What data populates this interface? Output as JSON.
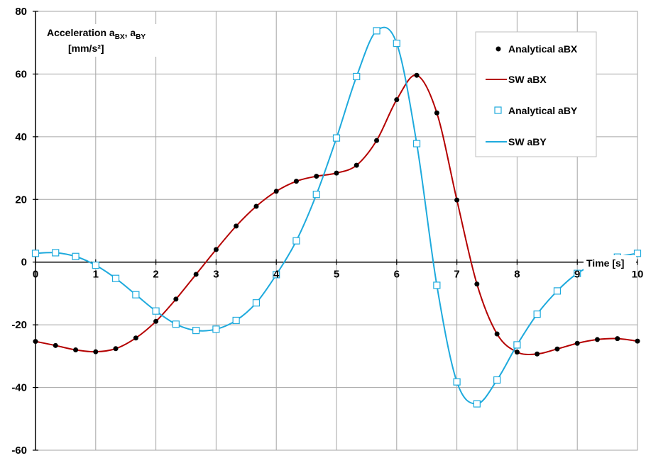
{
  "chart_data": {
    "type": "line",
    "ylabel_main": "Acceleration a",
    "ylabel_sub1": "BX",
    "ylabel_sep": ", a",
    "ylabel_sub2": "BY",
    "ylabel_line2": "[mm/s²]",
    "xlabel": "Time [s]",
    "xlim": [
      0,
      10
    ],
    "ylim": [
      -60,
      80
    ],
    "xticks": [
      0,
      1,
      2,
      3,
      4,
      5,
      6,
      7,
      8,
      9,
      10
    ],
    "yticks": [
      -60,
      -40,
      -20,
      0,
      20,
      40,
      60,
      80
    ],
    "grid": true,
    "legend_position": "top-right",
    "colors": {
      "red": "#b40000",
      "blue": "#1eaadd",
      "grid": "#a6a6a6",
      "axis": "#000000"
    },
    "series": [
      {
        "name": "Analytical aBX",
        "style": "markers-filled-circle",
        "x": [
          0,
          0.333,
          0.667,
          1,
          1.333,
          1.667,
          2,
          2.333,
          2.667,
          3,
          3.333,
          3.667,
          4,
          4.333,
          4.667,
          5,
          5.333,
          5.667,
          6,
          6.333,
          6.667,
          7,
          7.333,
          7.667,
          8,
          8.333,
          8.667,
          9,
          9.333,
          9.667,
          10
        ],
        "y": [
          -25.3,
          -26.6,
          -28.0,
          -28.6,
          -27.6,
          -24.2,
          -18.9,
          -11.8,
          -3.9,
          4.0,
          11.5,
          17.8,
          22.6,
          25.8,
          27.4,
          28.4,
          30.9,
          38.8,
          51.8,
          59.6,
          47.6,
          19.8,
          -7.0,
          -22.9,
          -28.7,
          -29.3,
          -27.7,
          -25.9,
          -24.7,
          -24.4,
          -25.2
        ]
      },
      {
        "name": "SW aBX",
        "style": "line",
        "x": [
          0,
          0.333,
          0.667,
          1,
          1.333,
          1.667,
          2,
          2.333,
          2.667,
          3,
          3.333,
          3.667,
          4,
          4.333,
          4.667,
          5,
          5.333,
          5.667,
          6,
          6.333,
          6.667,
          7,
          7.333,
          7.667,
          8,
          8.333,
          8.667,
          9,
          9.333,
          9.667,
          10
        ],
        "y": [
          -25.3,
          -26.6,
          -28.0,
          -28.6,
          -27.6,
          -24.2,
          -18.9,
          -11.8,
          -3.9,
          4.0,
          11.5,
          17.8,
          22.6,
          25.8,
          27.4,
          28.4,
          30.9,
          38.8,
          51.8,
          59.6,
          47.6,
          19.8,
          -7.0,
          -22.9,
          -28.7,
          -29.3,
          -27.7,
          -25.9,
          -24.7,
          -24.4,
          -25.2
        ]
      },
      {
        "name": "Analytical aBY",
        "style": "markers-open-square",
        "x": [
          0,
          0.333,
          0.667,
          1,
          1.333,
          1.667,
          2,
          2.333,
          2.667,
          3,
          3.333,
          3.667,
          4,
          4.333,
          4.667,
          5,
          5.333,
          5.667,
          6,
          6.333,
          6.667,
          7,
          7.333,
          7.667,
          8,
          8.333,
          8.667,
          9,
          9.333,
          9.667,
          10
        ],
        "y": [
          2.8,
          3.0,
          1.8,
          -1.0,
          -5.2,
          -10.4,
          -15.6,
          -19.8,
          -21.8,
          -21.4,
          -18.6,
          -13.0,
          -4.0,
          6.8,
          21.6,
          39.6,
          59.2,
          73.8,
          69.8,
          37.8,
          -7.4,
          -38.2,
          -45.2,
          -37.6,
          -26.4,
          -16.6,
          -9.2,
          -3.6,
          -0.4,
          1.6,
          2.8
        ]
      },
      {
        "name": "SW aBY",
        "style": "line",
        "x": [
          0,
          0.333,
          0.667,
          1,
          1.333,
          1.667,
          2,
          2.333,
          2.667,
          3,
          3.333,
          3.667,
          4,
          4.333,
          4.667,
          5,
          5.333,
          5.667,
          6,
          6.333,
          6.667,
          7,
          7.333,
          7.667,
          8,
          8.333,
          8.667,
          9,
          9.333,
          9.667,
          10
        ],
        "y": [
          2.8,
          3.0,
          1.8,
          -1.0,
          -5.2,
          -10.4,
          -15.6,
          -19.8,
          -21.8,
          -21.4,
          -18.6,
          -13.0,
          -4.0,
          6.8,
          21.6,
          39.6,
          59.2,
          73.8,
          69.8,
          37.8,
          -7.4,
          -38.2,
          -45.2,
          -37.6,
          -26.4,
          -16.6,
          -9.2,
          -3.6,
          -0.4,
          1.6,
          2.8
        ]
      }
    ]
  }
}
